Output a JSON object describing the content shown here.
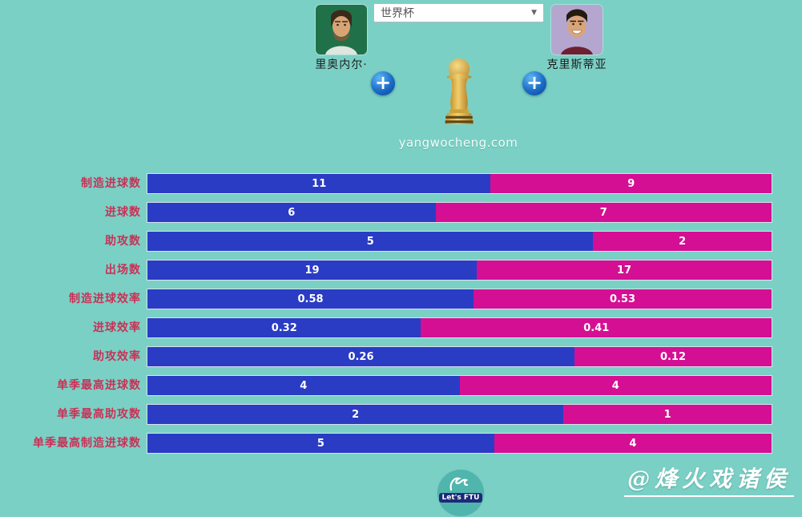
{
  "header": {
    "left_player": {
      "name": "里奥内尔·"
    },
    "right_player": {
      "name": "克里斯蒂亚"
    },
    "competition_select": {
      "value": "世界杯",
      "arrow": "▼"
    },
    "plus_label": "+",
    "site_watermark": "yangwocheng.com"
  },
  "chart_data": {
    "type": "bar",
    "orientation": "horizontal_stacked_comparison",
    "categories": [
      "制造进球数",
      "进球数",
      "助攻数",
      "出场数",
      "制造进球效率",
      "进球效率",
      "助攻效率",
      "单季最高进球数",
      "单季最高助攻数",
      "单季最高制造进球数"
    ],
    "series": [
      {
        "name": "里奥内尔·",
        "color": "#2a3cc4",
        "values": [
          "11",
          "6",
          "5",
          "19",
          "0.58",
          "0.32",
          "0.26",
          "4",
          "2",
          "5"
        ]
      },
      {
        "name": "克里斯蒂亚",
        "color": "#d40f93",
        "values": [
          "9",
          "7",
          "2",
          "17",
          "0.53",
          "0.41",
          "0.12",
          "4",
          "1",
          "4"
        ]
      }
    ],
    "value_labels_shown": true,
    "legend_position": "none",
    "grid": false
  },
  "footer": {
    "logo_label": "Let's FTU",
    "watermark": "@烽火戏诸侯"
  },
  "colors": {
    "background": "#7bd0c5",
    "bar_left": "#2a3cc4",
    "bar_right": "#d40f93",
    "row_label": "#c93156",
    "bar_border": "#d9e2ee"
  }
}
